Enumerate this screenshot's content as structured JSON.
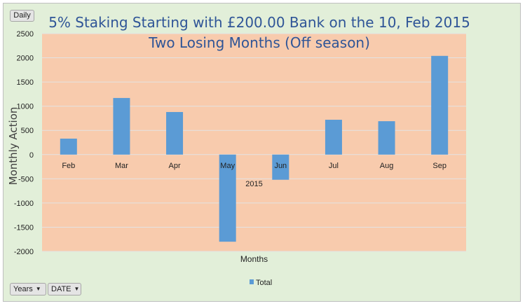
{
  "controls": {
    "daily_label": "Daily",
    "years_label": "Years",
    "date_label": "DATE"
  },
  "colors": {
    "background": "#e2efd9",
    "plot_area": "#f8cbad",
    "bar": "#5b9bd5",
    "title": "#2f5597"
  },
  "chart_data": {
    "type": "bar",
    "title": "5% Staking Starting with £200.00 Bank on the 10, Feb 2015",
    "subtitle": "Two Losing Months (Off season)",
    "xlabel": "Months",
    "ylabel": "Monthly Action",
    "group_label": "2015",
    "categories": [
      "Feb",
      "Mar",
      "Apr",
      "May",
      "Jun",
      "Jul",
      "Aug",
      "Sep"
    ],
    "series": [
      {
        "name": "Total",
        "values": [
          330,
          1170,
          880,
          -1800,
          -520,
          720,
          690,
          2040
        ]
      }
    ],
    "ylim": [
      -2000,
      2500
    ],
    "yticks": [
      -2000,
      -1500,
      -1000,
      -500,
      0,
      500,
      1000,
      1500,
      2000,
      2500
    ],
    "grid": true,
    "legend": "bottom"
  }
}
